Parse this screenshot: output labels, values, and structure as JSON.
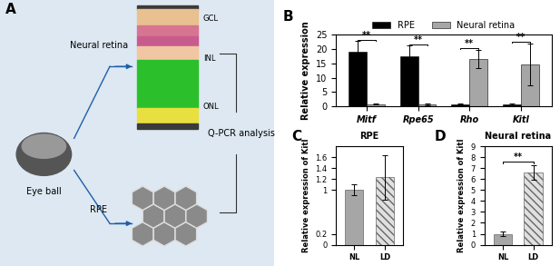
{
  "diagram": {
    "panel_label": "A",
    "nodes": [
      {
        "label": "Eye ball"
      },
      {
        "label": "Neural retina"
      },
      {
        "label": "RPE"
      },
      {
        "label": "Q-PCR analysis"
      }
    ],
    "retina_layers": [
      "GCL",
      "INL",
      "ONL"
    ]
  },
  "chart_data": [
    {
      "panel_label": "B",
      "type": "bar",
      "categories": [
        "Mitf",
        "Rpe65",
        "Rho",
        "Kitl"
      ],
      "y_label": "Relative expression",
      "series": [
        {
          "name": "RPE",
          "color": "#000000",
          "values": [
            19.0,
            17.3,
            0.8,
            0.8
          ],
          "errors": [
            3.7,
            3.8,
            0.2,
            0.3
          ]
        },
        {
          "name": "Neural retina",
          "color": "#a6a6a6",
          "values": [
            0.8,
            0.8,
            16.5,
            14.7
          ],
          "errors": [
            0.2,
            0.3,
            3.3,
            7.3
          ]
        }
      ],
      "significance": [
        "**",
        "**",
        "**",
        "**"
      ],
      "ylim": [
        0,
        25
      ],
      "yticks": [
        0,
        5,
        10,
        15,
        20,
        25
      ],
      "legend": "upper center"
    },
    {
      "panel_label": "C",
      "type": "bar",
      "title": "RPE",
      "categories": [
        "NL",
        "LD"
      ],
      "values": [
        1.0,
        1.23
      ],
      "errors": [
        0.1,
        0.4
      ],
      "colors": [
        "#a6a6a6",
        "#e0e0e0"
      ],
      "y_label": "Relative expression of Kitl",
      "ylim": [
        0,
        1.8
      ],
      "yticks": [
        0,
        0.2,
        1,
        1.2,
        1.4,
        1.6
      ]
    },
    {
      "panel_label": "D",
      "type": "bar",
      "title": "Neural retina",
      "categories": [
        "NL",
        "LD"
      ],
      "values": [
        1.0,
        6.6
      ],
      "errors": [
        0.2,
        0.7
      ],
      "colors": [
        "#a6a6a6",
        "#e0e0e0"
      ],
      "y_label": "Relative expression of Kitl",
      "significance": "**",
      "ylim": [
        0,
        9
      ],
      "yticks": [
        0,
        1,
        2,
        3,
        4,
        5,
        6,
        7,
        8,
        9
      ]
    }
  ]
}
